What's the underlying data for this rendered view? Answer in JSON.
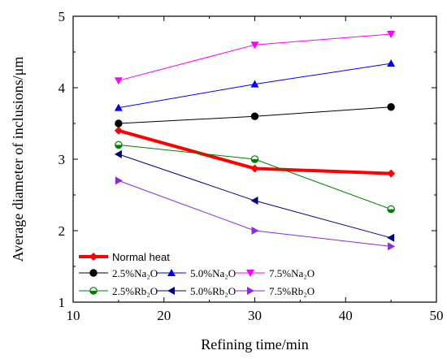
{
  "chart_data": {
    "type": "line",
    "title": "",
    "xlabel": "Refining time/min",
    "ylabel": "Average diameter of inclusions/μm",
    "xlim": [
      10,
      50
    ],
    "ylim": [
      1,
      5
    ],
    "xticks": [
      "10",
      "20",
      "30",
      "40",
      "50"
    ],
    "yticks": [
      "1",
      "2",
      "3",
      "4",
      "5"
    ],
    "grid": false,
    "legend_position": "bottom-left",
    "x": [
      15,
      30,
      45
    ],
    "series": [
      {
        "name": "Normal heat",
        "values": [
          3.4,
          2.87,
          2.8
        ],
        "color": "#ff0000",
        "marker": "diamond",
        "width": "thick"
      },
      {
        "name": "2.5%Na₂O",
        "values": [
          3.5,
          3.6,
          3.73
        ],
        "color": "#000000",
        "marker": "circle"
      },
      {
        "name": "5.0%Na₂O",
        "values": [
          3.72,
          4.05,
          4.34
        ],
        "color": "#0000ff",
        "marker": "triangle-up"
      },
      {
        "name": "7.5%Na₂O",
        "values": [
          4.1,
          4.6,
          4.75
        ],
        "color": "#ff00ff",
        "marker": "triangle-down"
      },
      {
        "name": "2.5%Rb₂O",
        "values": [
          3.2,
          3.0,
          2.3
        ],
        "color": "#008000",
        "marker": "half-circle"
      },
      {
        "name": "5.0%Rb₂O",
        "values": [
          3.07,
          2.42,
          1.9
        ],
        "color": "#000080",
        "marker": "triangle-left"
      },
      {
        "name": "7.5%Rb₂O",
        "values": [
          2.7,
          2.0,
          1.78
        ],
        "color": "#8a2be2",
        "marker": "triangle-right"
      }
    ]
  }
}
